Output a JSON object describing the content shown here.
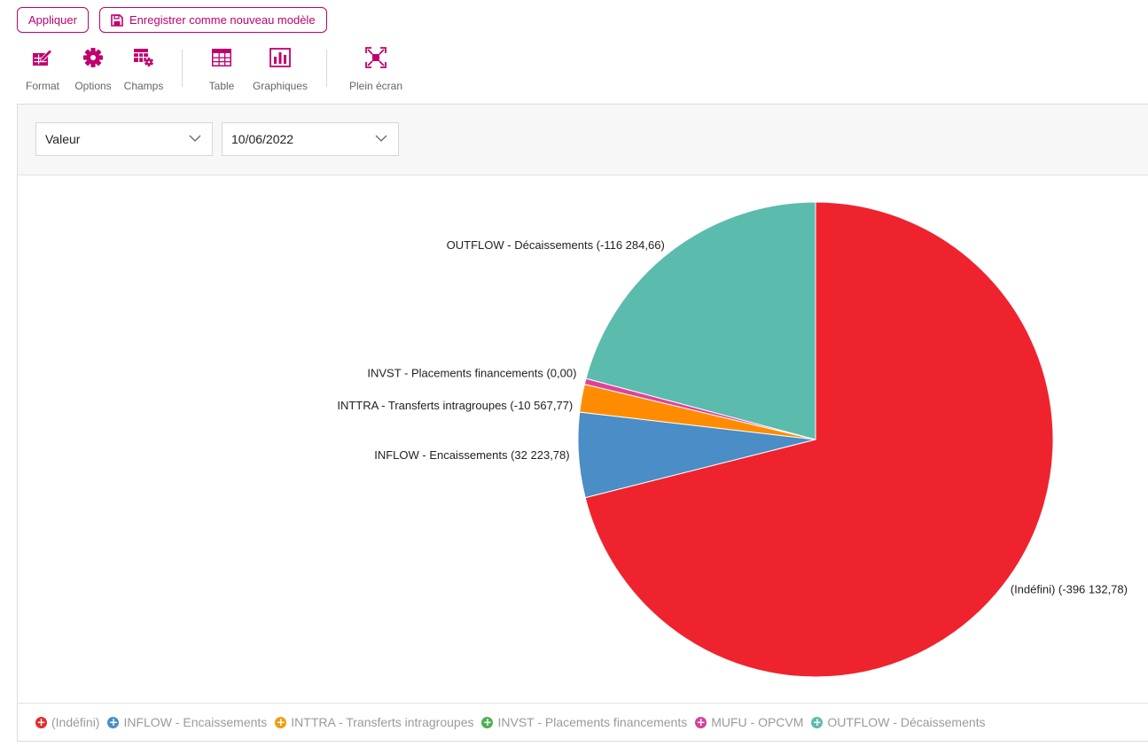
{
  "toolbar": {
    "apply_label": "Appliquer",
    "save_template_label": "Enregistrer comme nouveau modèle",
    "tools": {
      "format": "Format",
      "options": "Options",
      "champs": "Champs",
      "table": "Table",
      "graphiques": "Graphiques",
      "plein_ecran": "Plein écran"
    },
    "accent_color": "#c0006e"
  },
  "filters": {
    "measure": "Valeur",
    "date": "10/06/2022"
  },
  "chart_data": {
    "type": "pie",
    "slices": [
      {
        "name": "(Indéfini)",
        "value": -396132.78,
        "label": "(Indéfini) (-396 132,78)",
        "color": "#ef232e"
      },
      {
        "name": "INFLOW - Encaissements",
        "value": 32223.78,
        "label": "INFLOW - Encaissements (32 223,78)",
        "color": "#4a8dc7"
      },
      {
        "name": "INTTRA - Transferts intragroupes",
        "value": -10567.77,
        "label": "INTTRA - Transferts intragroupes (-10 567,77)",
        "color": "#ff8c00"
      },
      {
        "name": "INVST - Placements financements",
        "value": 0.0,
        "label": "INVST - Placements financements (0,00)",
        "color": "#e0429b"
      },
      {
        "name": "OUTFLOW - Décaissements",
        "value": -116284.66,
        "label": "OUTFLOW - Décaissements (-116 284,66)",
        "color": "#5bbbad"
      }
    ],
    "legend": [
      {
        "name": "(Indéfini)",
        "color": "#e52b2b"
      },
      {
        "name": "INFLOW - Encaissements",
        "color": "#4a8dc7"
      },
      {
        "name": "INTTRA - Transferts intragroupes",
        "color": "#f39c12"
      },
      {
        "name": "INVST - Placements financements",
        "color": "#4caf50"
      },
      {
        "name": "MUFU - OPCVM",
        "color": "#d6409b"
      },
      {
        "name": "OUTFLOW - Décaissements",
        "color": "#5bbbad"
      }
    ],
    "legend_placement": "bottom"
  }
}
